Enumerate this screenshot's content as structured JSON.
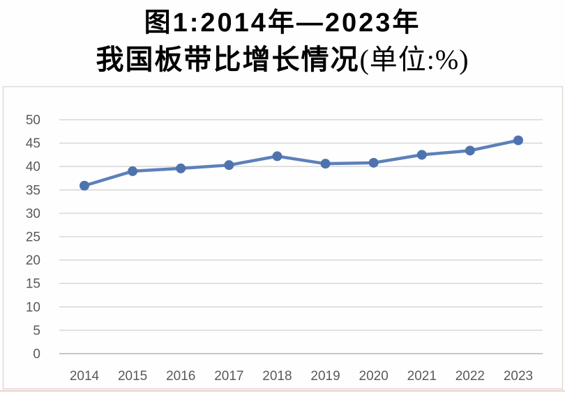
{
  "title": {
    "line1": "图1:2014年—2023年",
    "line2_prefix": "我国板带比增长情况",
    "line2_unit": "(单位:%)"
  },
  "chart_data": {
    "type": "line",
    "title": "图1:2014年—2023年我国板带比增长情况(单位:%)",
    "categories": [
      "2014",
      "2015",
      "2016",
      "2017",
      "2018",
      "2019",
      "2020",
      "2021",
      "2022",
      "2023"
    ],
    "series": [
      {
        "name": "板带比",
        "values": [
          35.9,
          39.0,
          39.6,
          40.3,
          42.2,
          40.6,
          40.8,
          42.5,
          43.4,
          45.6
        ]
      }
    ],
    "xlabel": "",
    "ylabel": "",
    "unit": "%",
    "ylim": [
      0,
      50
    ],
    "yticks": [
      0,
      5,
      10,
      15,
      20,
      25,
      30,
      35,
      40,
      45,
      50
    ],
    "grid": true,
    "legend_position": "none",
    "marker": "circle",
    "line_color": "#5d80ba",
    "marker_color": "#4e72ae",
    "gridline_color": "#d9d9d9",
    "axis_line_color": "#c7c7c7",
    "tick_label_color": "#595959",
    "chart_border_color": "#ded8d1",
    "bottom_edge_color": "#eecfc9"
  }
}
